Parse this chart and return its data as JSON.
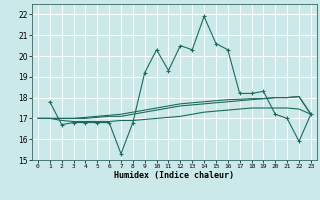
{
  "xlabel": "Humidex (Indice chaleur)",
  "xlim": [
    -0.5,
    23.5
  ],
  "ylim": [
    15,
    22.5
  ],
  "yticks": [
    15,
    16,
    17,
    18,
    19,
    20,
    21,
    22
  ],
  "xticks": [
    0,
    1,
    2,
    3,
    4,
    5,
    6,
    7,
    8,
    9,
    10,
    11,
    12,
    13,
    14,
    15,
    16,
    17,
    18,
    19,
    20,
    21,
    22,
    23
  ],
  "bg_color": "#cce9e9",
  "grid_color": "#ffffff",
  "line_color": "#1a6b5e",
  "line1_x": [
    1,
    2,
    3,
    4,
    5,
    6,
    7,
    8,
    9,
    10,
    11,
    12,
    13,
    14,
    15,
    16,
    17,
    18,
    19,
    20,
    21,
    22,
    23
  ],
  "line1_y": [
    17.8,
    16.7,
    16.8,
    16.8,
    16.8,
    16.8,
    15.3,
    16.8,
    19.2,
    20.3,
    19.3,
    20.5,
    20.3,
    21.9,
    20.6,
    20.3,
    18.2,
    18.2,
    18.3,
    17.2,
    17.0,
    15.9,
    17.2
  ],
  "line2_x": [
    0,
    1,
    2,
    3,
    4,
    5,
    6,
    7,
    8,
    9,
    10,
    11,
    12,
    13,
    14,
    15,
    16,
    17,
    18,
    19,
    20,
    21,
    22,
    23
  ],
  "line2_y": [
    17.0,
    17.0,
    17.0,
    17.0,
    17.0,
    17.05,
    17.1,
    17.1,
    17.2,
    17.3,
    17.4,
    17.5,
    17.6,
    17.65,
    17.7,
    17.75,
    17.8,
    17.85,
    17.9,
    17.95,
    18.0,
    18.0,
    18.05,
    17.2
  ],
  "line3_x": [
    0,
    1,
    2,
    3,
    4,
    5,
    6,
    7,
    8,
    9,
    10,
    11,
    12,
    13,
    14,
    15,
    16,
    17,
    18,
    19,
    20,
    21,
    22,
    23
  ],
  "line3_y": [
    17.0,
    17.0,
    16.9,
    16.85,
    16.85,
    16.85,
    16.85,
    16.9,
    16.9,
    16.95,
    17.0,
    17.05,
    17.1,
    17.2,
    17.3,
    17.35,
    17.4,
    17.45,
    17.5,
    17.5,
    17.5,
    17.5,
    17.45,
    17.2
  ],
  "line4_x": [
    0,
    1,
    2,
    3,
    4,
    5,
    6,
    7,
    8,
    9,
    10,
    11,
    12,
    13,
    14,
    15,
    16,
    17,
    18,
    19,
    20,
    21,
    22,
    23
  ],
  "line4_y": [
    17.0,
    17.0,
    17.0,
    17.0,
    17.05,
    17.1,
    17.15,
    17.2,
    17.3,
    17.4,
    17.5,
    17.6,
    17.7,
    17.75,
    17.8,
    17.85,
    17.9,
    17.92,
    17.95,
    17.95,
    18.0,
    18.0,
    18.05,
    17.2
  ]
}
